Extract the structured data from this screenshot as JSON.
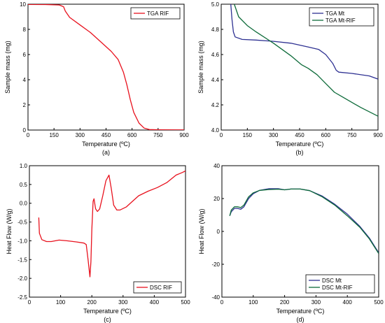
{
  "chart_data": [
    {
      "type": "line",
      "panel_label": "(a)",
      "xlabel": "Temperature (ºC)",
      "ylabel": "Sample mass (mg)",
      "xlim": [
        0,
        900
      ],
      "ylim": [
        0,
        10
      ],
      "xticks": [
        0,
        150,
        300,
        450,
        600,
        750,
        900
      ],
      "yticks": [
        0,
        2,
        4,
        6,
        8,
        10
      ],
      "legend_position": "top-right",
      "series": [
        {
          "name": "TGA RIF",
          "color": "#e8121e",
          "points": [
            [
              0,
              9.98
            ],
            [
              100,
              9.97
            ],
            [
              180,
              9.94
            ],
            [
              205,
              9.8
            ],
            [
              215,
              9.45
            ],
            [
              240,
              8.95
            ],
            [
              300,
              8.35
            ],
            [
              360,
              7.75
            ],
            [
              420,
              7.0
            ],
            [
              480,
              6.25
            ],
            [
              520,
              5.6
            ],
            [
              550,
              4.6
            ],
            [
              570,
              3.6
            ],
            [
              590,
              2.4
            ],
            [
              610,
              1.4
            ],
            [
              640,
              0.55
            ],
            [
              670,
              0.15
            ],
            [
              700,
              0.04
            ],
            [
              750,
              0.02
            ],
            [
              900,
              0.01
            ]
          ]
        }
      ]
    },
    {
      "type": "line",
      "panel_label": "(b)",
      "xlabel": "Temperature (ºC)",
      "ylabel": "Sample mass (mg)",
      "xlim": [
        0,
        900
      ],
      "ylim": [
        4.0,
        5.0
      ],
      "xticks": [
        0,
        150,
        300,
        450,
        600,
        750,
        900
      ],
      "yticks": [
        4.0,
        4.2,
        4.4,
        4.6,
        4.8,
        5.0
      ],
      "legend_position": "top-right",
      "series": [
        {
          "name": "TGA Mt",
          "color": "#2e3192",
          "points": [
            [
              55,
              5.0
            ],
            [
              62,
              4.88
            ],
            [
              70,
              4.78
            ],
            [
              80,
              4.74
            ],
            [
              120,
              4.72
            ],
            [
              200,
              4.715
            ],
            [
              300,
              4.705
            ],
            [
              400,
              4.69
            ],
            [
              500,
              4.66
            ],
            [
              560,
              4.64
            ],
            [
              600,
              4.6
            ],
            [
              640,
              4.53
            ],
            [
              660,
              4.475
            ],
            [
              675,
              4.46
            ],
            [
              750,
              4.45
            ],
            [
              850,
              4.43
            ],
            [
              900,
              4.405
            ]
          ]
        },
        {
          "name": "TGA Mt-RIF",
          "color": "#0e6b3a",
          "points": [
            [
              75,
              5.0
            ],
            [
              100,
              4.9
            ],
            [
              150,
              4.83
            ],
            [
              200,
              4.78
            ],
            [
              300,
              4.69
            ],
            [
              400,
              4.59
            ],
            [
              460,
              4.52
            ],
            [
              500,
              4.49
            ],
            [
              550,
              4.44
            ],
            [
              600,
              4.37
            ],
            [
              650,
              4.3
            ],
            [
              700,
              4.26
            ],
            [
              800,
              4.18
            ],
            [
              900,
              4.11
            ]
          ]
        }
      ]
    },
    {
      "type": "line",
      "panel_label": "(c)",
      "xlabel": "Temperature (ºC)",
      "ylabel": "Heat Flow (W/g)",
      "xlim": [
        0,
        500
      ],
      "ylim": [
        -2.5,
        1.0
      ],
      "xticks": [
        0,
        100,
        200,
        300,
        400,
        500
      ],
      "yticks": [
        -2.5,
        -2.0,
        -1.5,
        -1.0,
        -0.5,
        0.0,
        0.5,
        1.0
      ],
      "legend_position": "bottom-right",
      "series": [
        {
          "name": "DSC RIF",
          "color": "#e8121e",
          "points": [
            [
              30,
              -0.38
            ],
            [
              32,
              -0.8
            ],
            [
              40,
              -0.97
            ],
            [
              55,
              -1.02
            ],
            [
              70,
              -1.02
            ],
            [
              95,
              -0.98
            ],
            [
              120,
              -1.0
            ],
            [
              150,
              -1.03
            ],
            [
              175,
              -1.06
            ],
            [
              182,
              -1.1
            ],
            [
              188,
              -1.5
            ],
            [
              194,
              -1.96
            ],
            [
              197,
              -1.55
            ],
            [
              200,
              -0.7
            ],
            [
              204,
              0.05
            ],
            [
              207,
              0.12
            ],
            [
              212,
              -0.15
            ],
            [
              218,
              -0.22
            ],
            [
              225,
              -0.15
            ],
            [
              235,
              0.2
            ],
            [
              245,
              0.6
            ],
            [
              255,
              0.75
            ],
            [
              262,
              0.4
            ],
            [
              270,
              -0.05
            ],
            [
              280,
              -0.18
            ],
            [
              290,
              -0.18
            ],
            [
              310,
              -0.1
            ],
            [
              330,
              0.05
            ],
            [
              350,
              0.2
            ],
            [
              380,
              0.32
            ],
            [
              410,
              0.42
            ],
            [
              440,
              0.55
            ],
            [
              470,
              0.75
            ],
            [
              490,
              0.82
            ],
            [
              500,
              0.86
            ]
          ]
        }
      ]
    },
    {
      "type": "line",
      "panel_label": "(d)",
      "xlabel": "Temperature (ºC)",
      "ylabel": "Heat Flow (W/g)",
      "xlim": [
        0,
        500
      ],
      "ylim": [
        -40,
        40
      ],
      "xticks": [
        0,
        100,
        200,
        300,
        400,
        500
      ],
      "yticks": [
        -40,
        -20,
        0,
        20,
        40
      ],
      "legend_position": "bottom-right",
      "series": [
        {
          "name": "DSC Mt",
          "color": "#2e3192",
          "points": [
            [
              25,
              9.5
            ],
            [
              30,
              12
            ],
            [
              40,
              14
            ],
            [
              50,
              14
            ],
            [
              60,
              13.5
            ],
            [
              70,
              15
            ],
            [
              85,
              20
            ],
            [
              100,
              23
            ],
            [
              120,
              25
            ],
            [
              150,
              26
            ],
            [
              180,
              26
            ],
            [
              200,
              25.3
            ],
            [
              220,
              25.8
            ],
            [
              250,
              25.8
            ],
            [
              280,
              24.8
            ],
            [
              320,
              21.5
            ],
            [
              360,
              16.5
            ],
            [
              400,
              10.5
            ],
            [
              440,
              3
            ],
            [
              470,
              -4
            ],
            [
              500,
              -13
            ]
          ]
        },
        {
          "name": "DSC Mt-RIF",
          "color": "#0e6b3a",
          "points": [
            [
              25,
              9.5
            ],
            [
              30,
              13
            ],
            [
              40,
              15
            ],
            [
              50,
              15
            ],
            [
              60,
              14.5
            ],
            [
              70,
              16
            ],
            [
              85,
              21
            ],
            [
              100,
              23.5
            ],
            [
              120,
              25
            ],
            [
              150,
              25.5
            ],
            [
              180,
              25.7
            ],
            [
              200,
              25.3
            ],
            [
              220,
              25.8
            ],
            [
              250,
              25.8
            ],
            [
              280,
              24.8
            ],
            [
              320,
              21
            ],
            [
              360,
              16
            ],
            [
              400,
              9.5
            ],
            [
              440,
              2.5
            ],
            [
              470,
              -4.5
            ],
            [
              500,
              -13.5
            ]
          ]
        }
      ]
    }
  ]
}
